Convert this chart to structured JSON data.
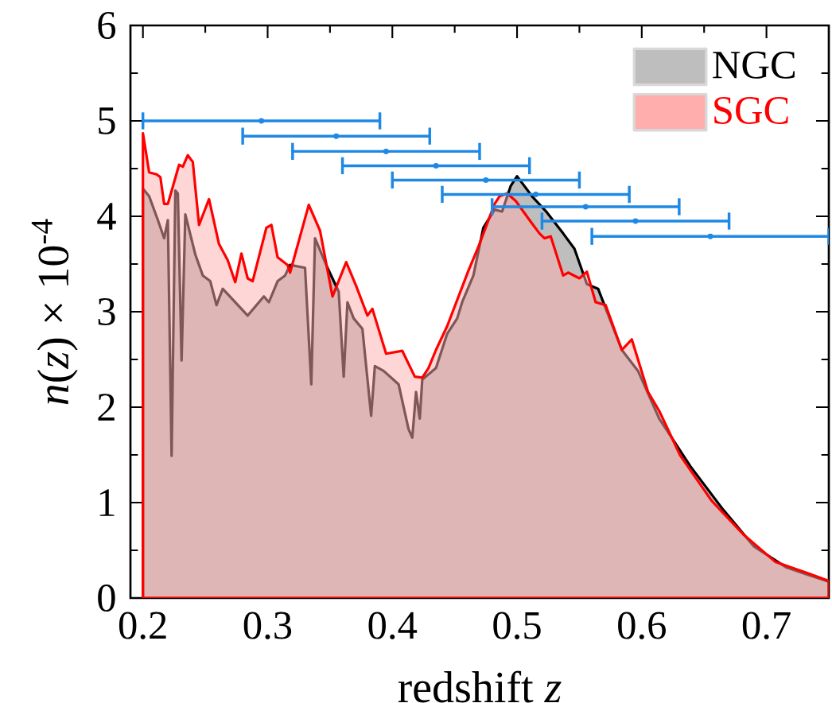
{
  "chart_data": {
    "type": "area",
    "xlabel": "redshift *z*",
    "ylabel": "*n*(*z*) × 10$^{-4}$",
    "xlim": [
      0.19,
      0.75
    ],
    "ylim": [
      0,
      6
    ],
    "xticks": [
      0.2,
      0.3,
      0.4,
      0.5,
      0.6,
      0.7
    ],
    "yticks": [
      0,
      1,
      2,
      3,
      4,
      5,
      6
    ],
    "legend": "top right",
    "grid": false,
    "series": [
      {
        "name": "NGC",
        "color": "#bebebe",
        "x": [
          0.2,
          0.205,
          0.212,
          0.217,
          0.22,
          0.223,
          0.226,
          0.228,
          0.231,
          0.234,
          0.242,
          0.248,
          0.254,
          0.259,
          0.264,
          0.284,
          0.297,
          0.301,
          0.308,
          0.314,
          0.318,
          0.33,
          0.335,
          0.338,
          0.348,
          0.357,
          0.361,
          0.364,
          0.369,
          0.376,
          0.383,
          0.386,
          0.393,
          0.405,
          0.413,
          0.416,
          0.419,
          0.422,
          0.424,
          0.435,
          0.444,
          0.452,
          0.456,
          0.465,
          0.473,
          0.482,
          0.488,
          0.495,
          0.5,
          0.512,
          0.524,
          0.537,
          0.546,
          0.556,
          0.565,
          0.584,
          0.597,
          0.614,
          0.639,
          0.665,
          0.69,
          0.716,
          0.75
        ],
        "values": [
          4.29,
          4.21,
          3.96,
          3.77,
          3.96,
          1.49,
          4.27,
          4.24,
          2.49,
          4.02,
          3.6,
          3.38,
          3.32,
          3.07,
          3.24,
          2.96,
          3.16,
          3.1,
          3.32,
          3.38,
          3.49,
          3.46,
          2.24,
          3.77,
          3.46,
          3.21,
          2.32,
          3.1,
          2.93,
          2.82,
          1.91,
          2.43,
          2.38,
          2.24,
          1.77,
          1.68,
          2.16,
          1.88,
          2.29,
          2.41,
          2.77,
          2.93,
          3.1,
          3.38,
          3.88,
          4.07,
          4.05,
          4.32,
          4.42,
          4.21,
          4.04,
          3.82,
          3.66,
          3.29,
          3.24,
          2.6,
          2.38,
          1.88,
          1.38,
          0.93,
          0.54,
          0.32,
          0.17
        ]
      },
      {
        "name": "SGC",
        "color": "#ffd6d6",
        "x": [
          0.2,
          0.205,
          0.211,
          0.214,
          0.217,
          0.22,
          0.229,
          0.232,
          0.236,
          0.24,
          0.245,
          0.253,
          0.261,
          0.268,
          0.274,
          0.279,
          0.284,
          0.288,
          0.299,
          0.303,
          0.308,
          0.316,
          0.318,
          0.333,
          0.342,
          0.352,
          0.363,
          0.371,
          0.38,
          0.384,
          0.395,
          0.408,
          0.418,
          0.424,
          0.429,
          0.435,
          0.444,
          0.461,
          0.469,
          0.482,
          0.486,
          0.492,
          0.499,
          0.51,
          0.518,
          0.522,
          0.527,
          0.537,
          0.541,
          0.55,
          0.556,
          0.563,
          0.571,
          0.584,
          0.592,
          0.605,
          0.614,
          0.631,
          0.656,
          0.682,
          0.707,
          0.733,
          0.75
        ],
        "values": [
          4.87,
          4.46,
          4.44,
          4.41,
          4.13,
          4.13,
          4.54,
          4.52,
          4.64,
          4.57,
          3.91,
          4.18,
          3.71,
          3.54,
          3.31,
          3.61,
          3.35,
          3.32,
          3.88,
          3.91,
          3.57,
          3.49,
          3.41,
          4.12,
          3.85,
          3.16,
          3.52,
          3.27,
          2.96,
          3.03,
          2.56,
          2.59,
          2.32,
          2.31,
          2.41,
          2.6,
          2.85,
          3.43,
          3.68,
          4.13,
          4.21,
          4.24,
          4.16,
          3.96,
          3.82,
          3.77,
          3.79,
          3.38,
          3.41,
          3.35,
          3.42,
          3.1,
          3.07,
          2.6,
          2.71,
          2.16,
          1.96,
          1.49,
          1.02,
          0.66,
          0.38,
          0.26,
          0.18
        ]
      },
      {
        "type": "scatter",
        "color": "#1e88e5",
        "x": [
          0.295,
          0.355,
          0.395,
          0.435,
          0.475,
          0.515,
          0.555,
          0.595,
          0.655
        ],
        "values": [
          5.0,
          4.84,
          4.68,
          4.53,
          4.38,
          4.23,
          4.1,
          3.95,
          3.79
        ],
        "xerrors": [
          0.095,
          0.075,
          0.075,
          0.075,
          0.075,
          0.075,
          0.075,
          0.075,
          0.095
        ]
      }
    ]
  }
}
